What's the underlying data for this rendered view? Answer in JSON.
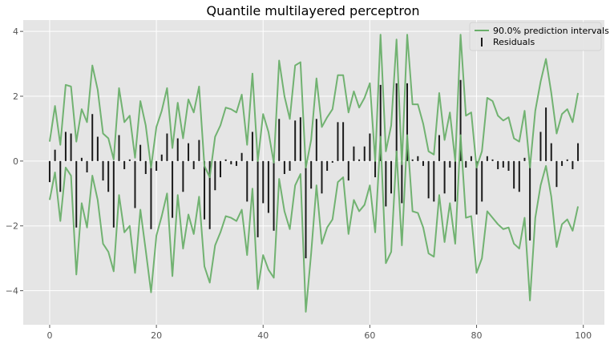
{
  "chart_data": {
    "type": "line",
    "title": "Quantile multilayered perceptron",
    "xlabel": "",
    "ylabel": "",
    "xlim": [
      -4.95,
      103.95
    ],
    "ylim": [
      -5.05,
      4.35
    ],
    "xticks": [
      0,
      20,
      40,
      60,
      80,
      100
    ],
    "yticks": [
      -4,
      -2,
      0,
      2,
      4
    ],
    "xtick_labels": [
      "0",
      "20",
      "40",
      "60",
      "80",
      "100"
    ],
    "ytick_labels": [
      "−4",
      "−2",
      "0",
      "2",
      "4"
    ],
    "grid": true,
    "legend_position": "top-right",
    "colors": {
      "background": "#E5E5E5",
      "grid": "#FFFFFF",
      "interval": "#6AAF6A",
      "residual": "#1A1A1A"
    },
    "series": [
      {
        "name": "90.0% prediction intervals",
        "kind": "band",
        "upper": [
          0.6,
          1.7,
          0.5,
          2.35,
          2.3,
          0.6,
          1.6,
          1.2,
          2.95,
          2.2,
          0.85,
          0.7,
          0.05,
          2.25,
          1.2,
          1.4,
          0.1,
          1.85,
          1.1,
          -0.2,
          1.05,
          1.55,
          2.25,
          0.4,
          1.8,
          0.7,
          1.9,
          1.5,
          2.3,
          -0.15,
          -0.5,
          0.75,
          1.1,
          1.65,
          1.6,
          1.5,
          2.05,
          0.5,
          2.7,
          0.0,
          1.45,
          0.9,
          -0.05,
          3.1,
          2.0,
          1.3,
          2.95,
          3.05,
          -0.2,
          0.65,
          2.55,
          1.05,
          1.35,
          1.6,
          2.65,
          2.65,
          1.5,
          2.15,
          1.65,
          1.95,
          2.4,
          0.0,
          3.9,
          0.3,
          1.1,
          3.75,
          -0.1,
          3.9,
          1.75,
          1.75,
          1.15,
          0.3,
          0.2,
          2.1,
          0.65,
          1.5,
          0.0,
          3.9,
          1.4,
          1.5,
          -0.2,
          0.3,
          1.95,
          1.85,
          1.4,
          1.25,
          1.35,
          0.7,
          0.6,
          1.55,
          -0.2,
          1.55,
          2.45,
          3.15,
          2.1,
          0.85,
          1.45,
          1.6,
          1.2,
          2.1
        ]
      },
      {
        "name": "",
        "kind": "band",
        "lower": [
          -1.2,
          -0.35,
          -1.85,
          -0.2,
          -0.45,
          -3.5,
          -1.3,
          -2.05,
          -0.45,
          -1.2,
          -2.55,
          -2.8,
          -3.4,
          -1.05,
          -2.2,
          -2.0,
          -3.45,
          -1.5,
          -2.75,
          -4.05,
          -2.3,
          -1.7,
          -1.0,
          -3.55,
          -1.05,
          -2.7,
          -1.65,
          -2.25,
          -1.1,
          -3.25,
          -3.75,
          -2.6,
          -2.2,
          -1.7,
          -1.75,
          -1.85,
          -1.5,
          -2.9,
          -0.85,
          -3.95,
          -2.9,
          -3.35,
          -3.6,
          -0.55,
          -1.55,
          -2.1,
          -0.75,
          -0.4,
          -4.65,
          -2.85,
          -0.75,
          -2.55,
          -2.05,
          -1.8,
          -0.65,
          -0.5,
          -2.25,
          -1.2,
          -1.55,
          -1.35,
          -0.75,
          -2.2,
          0.75,
          -3.15,
          -2.8,
          0.3,
          -2.6,
          0.8,
          -1.55,
          -1.6,
          -2.05,
          -2.85,
          -2.95,
          -1.05,
          -2.5,
          -1.3,
          -2.55,
          0.8,
          -1.75,
          -1.7,
          -3.45,
          -3.0,
          -1.55,
          -1.75,
          -1.95,
          -2.1,
          -2.05,
          -2.55,
          -2.7,
          -1.75,
          -4.3,
          -1.75,
          -0.75,
          -0.15,
          -1.1,
          -2.65,
          -1.95,
          -1.8,
          -2.15,
          -1.4
        ]
      },
      {
        "name": "Residuals",
        "kind": "vlines",
        "values": [
          -0.65,
          0.35,
          -0.95,
          0.9,
          0.85,
          -2.05,
          0.1,
          -0.35,
          1.45,
          0.75,
          -0.6,
          -0.95,
          -2.05,
          0.8,
          -0.25,
          0.05,
          -1.45,
          0.5,
          -0.4,
          -2.1,
          -0.3,
          0.2,
          0.85,
          -1.75,
          0.7,
          -0.95,
          0.55,
          -0.25,
          0.65,
          -1.8,
          -2.1,
          -0.9,
          -0.5,
          0.05,
          -0.1,
          -0.15,
          0.25,
          -1.25,
          0.9,
          -2.35,
          -1.3,
          -1.6,
          -2.15,
          1.3,
          -0.4,
          -0.3,
          1.25,
          1.35,
          -3.0,
          -0.85,
          1.3,
          -1.0,
          -0.3,
          -0.05,
          1.2,
          1.2,
          -0.6,
          0.45,
          0.05,
          0.45,
          0.85,
          -0.5,
          2.35,
          -1.4,
          -1.0,
          2.4,
          -1.3,
          2.4,
          0.05,
          0.15,
          -0.15,
          -1.15,
          -1.25,
          0.8,
          -1.0,
          -0.2,
          -1.25,
          2.5,
          -0.2,
          0.15,
          -1.65,
          -1.25,
          0.15,
          0.05,
          -0.25,
          -0.2,
          -0.3,
          -0.85,
          -0.95,
          0.1,
          -2.45,
          0.0,
          0.9,
          1.65,
          0.55,
          -0.8,
          -0.15,
          0.05,
          -0.25,
          0.55
        ]
      }
    ],
    "legend": {
      "interval_label": "90.0% prediction intervals",
      "residual_label": "Residuals"
    }
  }
}
